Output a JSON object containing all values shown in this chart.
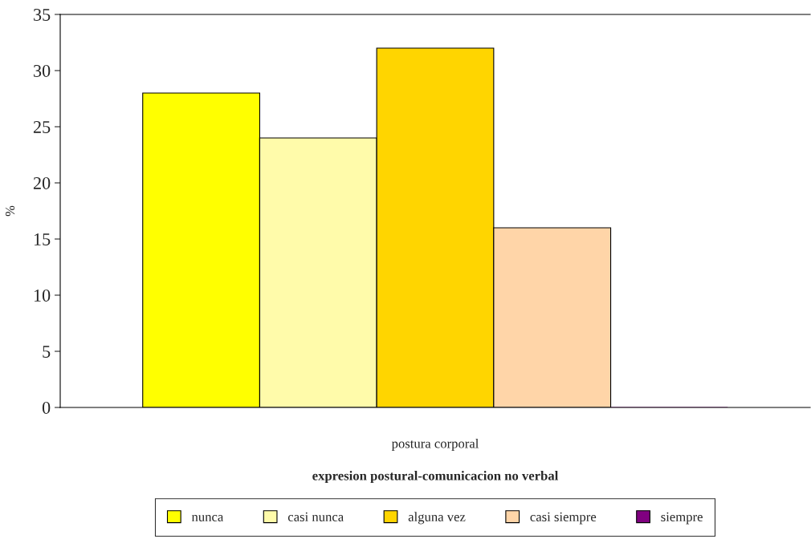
{
  "chart_data": {
    "type": "bar",
    "categories": [
      "postura corporal"
    ],
    "xlabel": "expresion postural-comunicacion no verbal",
    "ylabel": "%",
    "series": [
      {
        "name": "nunca",
        "color": "#ffff00",
        "values": [
          28
        ]
      },
      {
        "name": "casi nunca",
        "color": "#fffbaa",
        "values": [
          24
        ]
      },
      {
        "name": "alguna vez",
        "color": "#ffd500",
        "values": [
          32
        ]
      },
      {
        "name": "casi siempre",
        "color": "#ffd5a8",
        "values": [
          16
        ]
      },
      {
        "name": "siempre",
        "color": "#800080",
        "values": [
          0
        ]
      }
    ],
    "ylim": [
      0,
      35
    ],
    "yticks": [
      0,
      5,
      10,
      15,
      20,
      25,
      30,
      35
    ],
    "grid": false,
    "legend": "bottom"
  }
}
